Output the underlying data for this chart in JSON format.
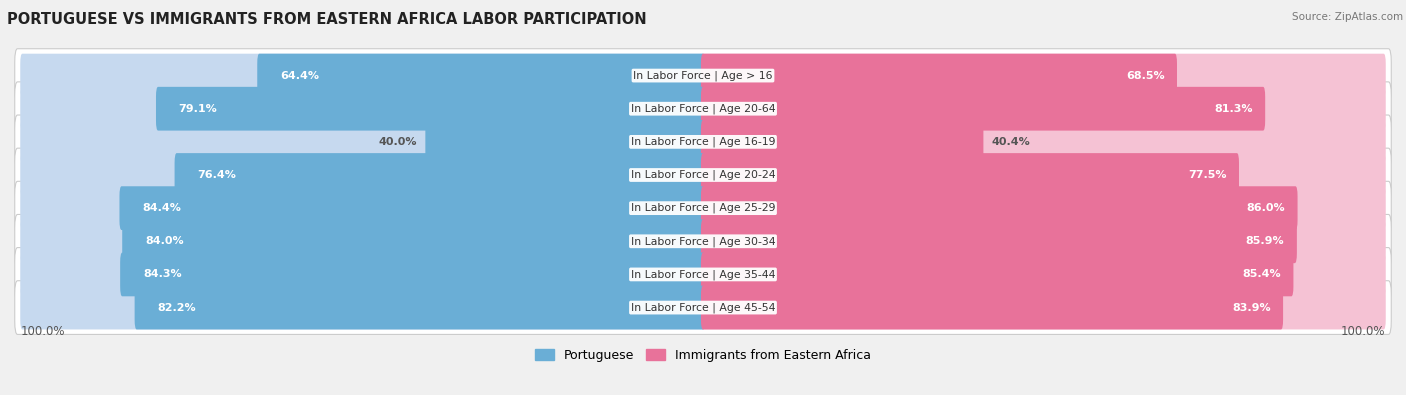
{
  "title": "PORTUGUESE VS IMMIGRANTS FROM EASTERN AFRICA LABOR PARTICIPATION",
  "source": "Source: ZipAtlas.com",
  "categories": [
    "In Labor Force | Age > 16",
    "In Labor Force | Age 20-64",
    "In Labor Force | Age 16-19",
    "In Labor Force | Age 20-24",
    "In Labor Force | Age 25-29",
    "In Labor Force | Age 30-34",
    "In Labor Force | Age 35-44",
    "In Labor Force | Age 45-54"
  ],
  "portuguese_values": [
    64.4,
    79.1,
    40.0,
    76.4,
    84.4,
    84.0,
    84.3,
    82.2
  ],
  "immigrant_values": [
    68.5,
    81.3,
    40.4,
    77.5,
    86.0,
    85.9,
    85.4,
    83.9
  ],
  "portuguese_color": "#6aaed6",
  "immigrant_color": "#e8729a",
  "portuguese_color_light": "#c6d9ef",
  "immigrant_color_light": "#f5c2d4",
  "background_color": "#f0f0f0",
  "row_bg_color": "#e8e8e8",
  "bar_bg_color_left": "#dde8f4",
  "bar_bg_color_right": "#f7dde7",
  "legend_portuguese": "Portuguese",
  "legend_immigrant": "Immigrants from Eastern Africa",
  "max_val": 100.0,
  "title_fontsize": 10.5,
  "bar_label_fontsize": 8.0,
  "cat_label_fontsize": 7.8
}
